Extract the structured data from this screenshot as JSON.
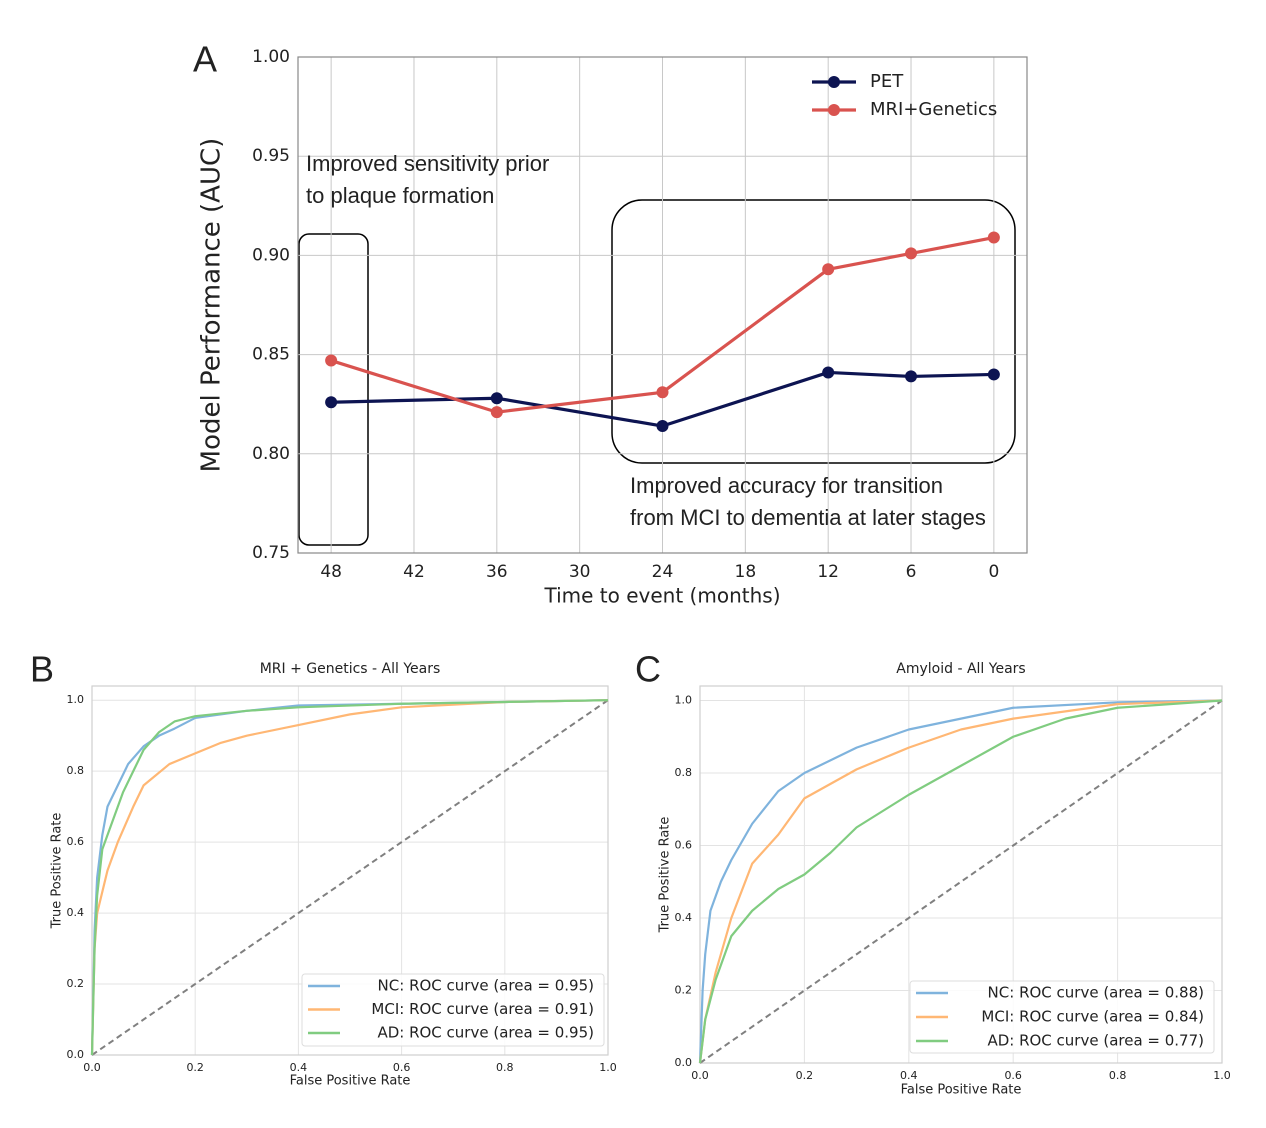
{
  "chart_data": [
    {
      "type": "line",
      "panel_label": "A",
      "x_label": "Time to event (months)",
      "y_label": "Model Performance (AUC)",
      "x": [
        48,
        36,
        24,
        12,
        6,
        0
      ],
      "xlim": [
        50.4,
        -2.4
      ],
      "xticks": [
        48,
        42,
        36,
        30,
        24,
        18,
        12,
        6,
        0
      ],
      "ylim": [
        0.75,
        1.0
      ],
      "yticks": [
        0.75,
        {
          "value": 0.8,
          "label": "0.80"
        },
        0.85,
        {
          "value": 0.9,
          "label": "0.90"
        },
        0.95,
        {
          "value": 1.0,
          "label": "1.00"
        }
      ],
      "grid": true,
      "markers": true,
      "legend": "upper right",
      "series": [
        {
          "name": "PET",
          "color": "#0d1452",
          "values": [
            0.826,
            0.828,
            0.814,
            0.841,
            0.839,
            0.84
          ]
        },
        {
          "name": "MRI+Genetics",
          "color": "#d9534f",
          "values": [
            0.847,
            0.821,
            0.831,
            0.893,
            0.901,
            0.909
          ]
        }
      ],
      "annotations": [
        {
          "lines": [
            "Improved sensitivity prior",
            "to plaque formation"
          ]
        },
        {
          "lines": [
            "Improved accuracy for transition",
            "from MCI to dementia at later stages"
          ]
        }
      ]
    },
    {
      "type": "line",
      "panel_label": "B",
      "title": "MRI + Genetics - All Years",
      "x_label": "False Positive Rate",
      "y_label": "True Positive Rate",
      "xlim": [
        0,
        1
      ],
      "xticks": [
        {
          "value": 0,
          "label": "0.0"
        },
        0.2,
        0.4,
        0.6,
        0.8,
        {
          "value": 1,
          "label": "1.0"
        }
      ],
      "ylim": [
        0,
        1.04
      ],
      "yticks": [
        {
          "value": 0,
          "label": "0.0"
        },
        0.2,
        0.4,
        0.6,
        0.8,
        {
          "value": 1,
          "label": "1.0"
        }
      ],
      "grid": true,
      "markers": false,
      "legend": "lower right",
      "diagonal": {
        "x": [
          0,
          1
        ],
        "values": [
          0,
          1
        ],
        "color": "#808080"
      },
      "series": [
        {
          "name": "NC: ROC curve (area = 0.95)",
          "color": "#7fb3dd",
          "x": [
            0,
            0.005,
            0.01,
            0.02,
            0.03,
            0.05,
            0.07,
            0.1,
            0.13,
            0.16,
            0.2,
            0.3,
            0.4,
            0.6,
            0.8,
            1
          ],
          "values": [
            0,
            0.35,
            0.5,
            0.62,
            0.7,
            0.76,
            0.82,
            0.87,
            0.9,
            0.92,
            0.95,
            0.97,
            0.985,
            0.99,
            0.995,
            1
          ]
        },
        {
          "name": "MCI: ROC curve (area = 0.91)",
          "color": "#ffb774",
          "x": [
            0,
            0.005,
            0.01,
            0.03,
            0.05,
            0.08,
            0.1,
            0.15,
            0.2,
            0.25,
            0.3,
            0.4,
            0.5,
            0.6,
            0.8,
            1
          ],
          "values": [
            0,
            0.3,
            0.4,
            0.52,
            0.6,
            0.7,
            0.76,
            0.82,
            0.85,
            0.88,
            0.9,
            0.93,
            0.96,
            0.98,
            0.995,
            1
          ]
        },
        {
          "name": "AD: ROC curve (area = 0.95)",
          "color": "#80cc80",
          "x": [
            0,
            0.005,
            0.01,
            0.02,
            0.04,
            0.06,
            0.08,
            0.1,
            0.13,
            0.16,
            0.2,
            0.3,
            0.4,
            0.6,
            0.8,
            1
          ],
          "values": [
            0,
            0.3,
            0.45,
            0.58,
            0.66,
            0.74,
            0.8,
            0.86,
            0.91,
            0.94,
            0.955,
            0.97,
            0.98,
            0.99,
            0.995,
            1
          ]
        }
      ]
    },
    {
      "type": "line",
      "panel_label": "C",
      "title": "Amyloid - All Years",
      "x_label": "False Positive Rate",
      "y_label": "True Positive Rate",
      "xlim": [
        0,
        1
      ],
      "xticks": [
        {
          "value": 0,
          "label": "0.0"
        },
        0.2,
        0.4,
        0.6,
        0.8,
        {
          "value": 1,
          "label": "1.0"
        }
      ],
      "ylim": [
        0,
        1.04
      ],
      "yticks": [
        {
          "value": 0,
          "label": "0.0"
        },
        0.2,
        0.4,
        0.6,
        0.8,
        {
          "value": 1,
          "label": "1.0"
        }
      ],
      "grid": true,
      "markers": false,
      "legend": "lower right",
      "diagonal": {
        "x": [
          0,
          1
        ],
        "values": [
          0,
          1
        ],
        "color": "#808080"
      },
      "series": [
        {
          "name": "NC: ROC curve (area = 0.88)",
          "color": "#7fb3dd",
          "x": [
            0,
            0.005,
            0.01,
            0.02,
            0.04,
            0.06,
            0.1,
            0.15,
            0.2,
            0.3,
            0.4,
            0.5,
            0.6,
            0.8,
            1
          ],
          "values": [
            0,
            0.2,
            0.3,
            0.42,
            0.5,
            0.56,
            0.66,
            0.75,
            0.8,
            0.87,
            0.92,
            0.95,
            0.98,
            0.995,
            1
          ]
        },
        {
          "name": "MCI: ROC curve (area = 0.84)",
          "color": "#ffb774",
          "x": [
            0,
            0.01,
            0.03,
            0.06,
            0.1,
            0.15,
            0.2,
            0.25,
            0.3,
            0.4,
            0.5,
            0.6,
            0.7,
            0.8,
            1
          ],
          "values": [
            0,
            0.12,
            0.25,
            0.4,
            0.55,
            0.63,
            0.73,
            0.77,
            0.81,
            0.87,
            0.92,
            0.95,
            0.97,
            0.99,
            1
          ]
        },
        {
          "name": "AD: ROC curve (area = 0.77)",
          "color": "#80cc80",
          "x": [
            0,
            0.01,
            0.03,
            0.06,
            0.1,
            0.15,
            0.2,
            0.25,
            0.3,
            0.4,
            0.5,
            0.6,
            0.7,
            0.8,
            0.9,
            1
          ],
          "values": [
            0,
            0.12,
            0.23,
            0.35,
            0.42,
            0.48,
            0.52,
            0.58,
            0.65,
            0.74,
            0.82,
            0.9,
            0.95,
            0.98,
            0.99,
            1
          ]
        }
      ]
    }
  ]
}
